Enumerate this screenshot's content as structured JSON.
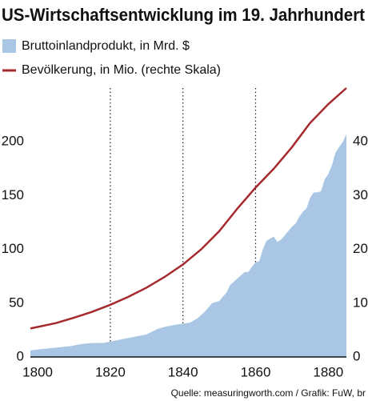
{
  "chart_data": {
    "type": "area_line",
    "title": "US-Wirtschaftsentwicklung im 19. Jahrhundert",
    "source": "Quelle: measuringworth.com / Grafik: FuW, br",
    "series": [
      {
        "name": "Bruttoinlandprodukt, in Mrd. $",
        "color": "#a9c7e4",
        "kind": "area",
        "x": [
          1798,
          1800,
          1803,
          1806,
          1809,
          1812,
          1815,
          1818,
          1821,
          1824,
          1827,
          1830,
          1833,
          1835,
          1838,
          1840,
          1842,
          1844,
          1846,
          1848,
          1850,
          1852,
          1853,
          1854,
          1856,
          1857,
          1858,
          1859,
          1860,
          1861,
          1862,
          1863,
          1864,
          1865,
          1866,
          1867,
          1868,
          1869,
          1870,
          1871,
          1872,
          1873,
          1874,
          1875,
          1876,
          1877,
          1878,
          1879,
          1880,
          1881,
          1882,
          1883,
          1884,
          1885
        ],
        "values": [
          6,
          7,
          8,
          9,
          10,
          12,
          13,
          13,
          15,
          17,
          19,
          21,
          26,
          28,
          30,
          31,
          32,
          36,
          42,
          50,
          52,
          60,
          67,
          70,
          76,
          79,
          79,
          84,
          88,
          89,
          100,
          108,
          110,
          112,
          107,
          109,
          113,
          117,
          121,
          124,
          130,
          135,
          138,
          148,
          153,
          153,
          154,
          165,
          170,
          178,
          190,
          195,
          200,
          207
        ]
      },
      {
        "name": "Bevölkerung, in Mio.  (rechte Skala)",
        "color": "#a52a2d",
        "kind": "line",
        "axis": "y2",
        "x": [
          1798,
          1805,
          1810,
          1815,
          1820,
          1825,
          1830,
          1835,
          1840,
          1845,
          1850,
          1855,
          1860,
          1865,
          1870,
          1875,
          1880,
          1885
        ],
        "values": [
          5.3,
          6.3,
          7.3,
          8.4,
          9.7,
          11.2,
          12.9,
          14.9,
          17.2,
          20.0,
          23.4,
          27.6,
          31.5,
          35.0,
          39.0,
          43.5,
          47.0,
          50.0
        ]
      }
    ],
    "xlim": [
      1798,
      1885
    ],
    "xticks": [
      1800,
      1820,
      1840,
      1860,
      1880
    ],
    "xgrid": [
      1820,
      1840,
      1860
    ],
    "ylim": [
      0,
      250
    ],
    "yticks": [
      0,
      50,
      100,
      150,
      200
    ],
    "y2lim": [
      0,
      50
    ],
    "y2ticks": [
      0,
      10,
      20,
      30,
      40
    ]
  }
}
